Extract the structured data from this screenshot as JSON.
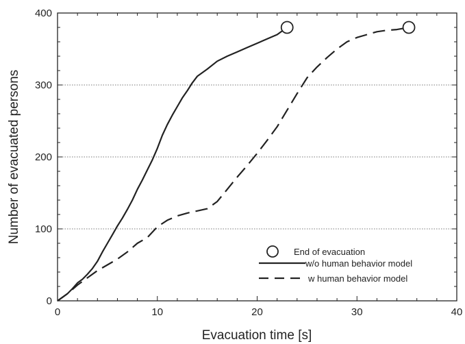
{
  "chart_data": {
    "type": "line",
    "xlabel": "Evacuation time [s]",
    "ylabel": "Number of evacuated persons",
    "xlim": [
      0,
      40
    ],
    "ylim": [
      0,
      400
    ],
    "x_ticks": [
      "0",
      "10",
      "20",
      "30",
      "40"
    ],
    "y_ticks": [
      "0",
      "100",
      "200",
      "300",
      "400"
    ],
    "grid": "horizontal dotted at 100, 200, 300",
    "legend_position": "bottom-right",
    "legend": {
      "end_marker": "End of evacuation",
      "series": [
        "w/o human behavior model",
        "w human behavior model"
      ]
    },
    "series": [
      {
        "name": "w/o human behavior model",
        "style": "solid",
        "end_marker": [
          23,
          380
        ],
        "points": [
          [
            0,
            0
          ],
          [
            0.5,
            5
          ],
          [
            1,
            10
          ],
          [
            1.5,
            17
          ],
          [
            2,
            25
          ],
          [
            2.5,
            30
          ],
          [
            3,
            37
          ],
          [
            3.5,
            45
          ],
          [
            4,
            55
          ],
          [
            4.5,
            68
          ],
          [
            5,
            80
          ],
          [
            5.5,
            92
          ],
          [
            6,
            104
          ],
          [
            6.5,
            115
          ],
          [
            7,
            127
          ],
          [
            7.5,
            140
          ],
          [
            8,
            155
          ],
          [
            8.5,
            168
          ],
          [
            9,
            182
          ],
          [
            9.5,
            196
          ],
          [
            10,
            212
          ],
          [
            10.5,
            230
          ],
          [
            11,
            245
          ],
          [
            11.5,
            258
          ],
          [
            12,
            270
          ],
          [
            12.5,
            282
          ],
          [
            13,
            292
          ],
          [
            13.5,
            303
          ],
          [
            14,
            312
          ],
          [
            15,
            322
          ],
          [
            16,
            333
          ],
          [
            17,
            340
          ],
          [
            18,
            346
          ],
          [
            19,
            352
          ],
          [
            20,
            358
          ],
          [
            21,
            364
          ],
          [
            22,
            370
          ],
          [
            23,
            380
          ]
        ]
      },
      {
        "name": "w human behavior model",
        "style": "dashed",
        "end_marker": [
          35.2,
          380
        ],
        "points": [
          [
            0,
            0
          ],
          [
            1,
            10
          ],
          [
            2,
            22
          ],
          [
            3,
            32
          ],
          [
            4,
            42
          ],
          [
            5,
            50
          ],
          [
            6,
            58
          ],
          [
            7,
            68
          ],
          [
            8,
            80
          ],
          [
            9,
            88
          ],
          [
            10,
            103
          ],
          [
            11,
            112
          ],
          [
            12,
            118
          ],
          [
            13,
            122
          ],
          [
            14,
            125
          ],
          [
            15,
            128
          ],
          [
            16,
            138
          ],
          [
            17,
            155
          ],
          [
            18,
            172
          ],
          [
            19,
            188
          ],
          [
            20,
            205
          ],
          [
            21,
            223
          ],
          [
            22,
            242
          ],
          [
            23,
            265
          ],
          [
            24,
            288
          ],
          [
            25,
            310
          ],
          [
            26,
            325
          ],
          [
            27,
            338
          ],
          [
            28,
            350
          ],
          [
            29,
            360
          ],
          [
            30,
            366
          ],
          [
            31,
            370
          ],
          [
            32,
            374
          ],
          [
            33,
            376
          ],
          [
            34,
            377
          ],
          [
            35.2,
            380
          ]
        ]
      }
    ]
  }
}
